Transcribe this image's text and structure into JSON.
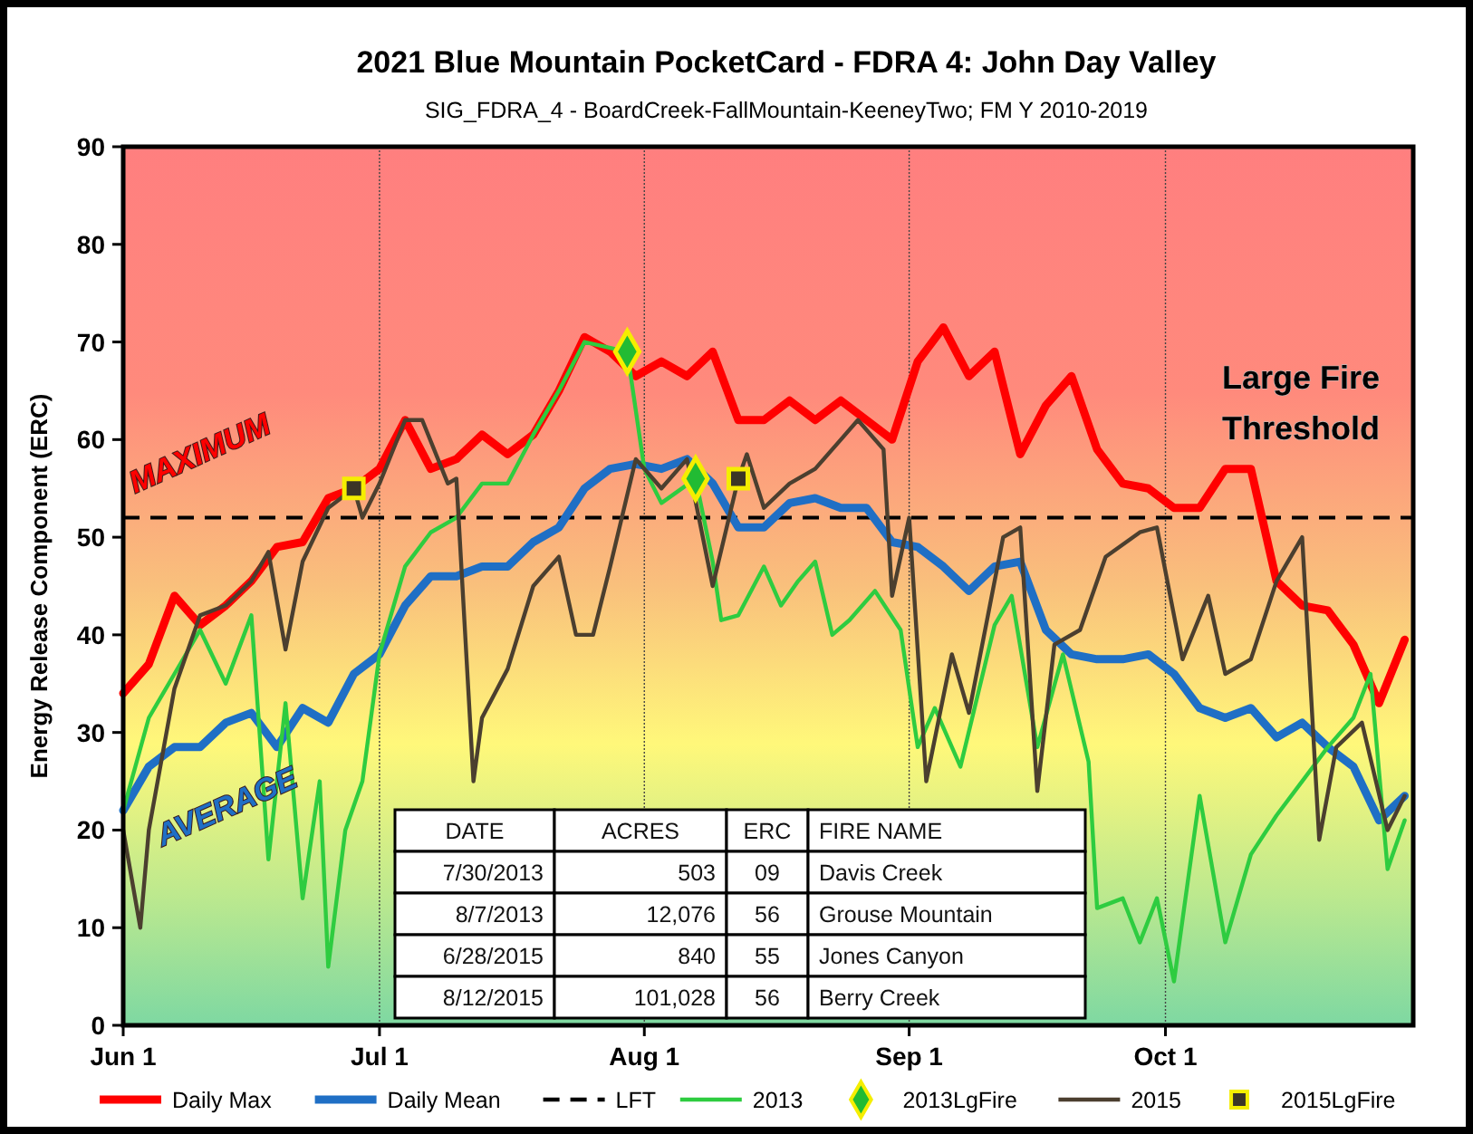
{
  "chart_data": {
    "type": "line",
    "title": "2021 Blue Mountain PocketCard - FDRA 4: John Day Valley",
    "subtitle": "SIG_FDRA_4 - BoardCreek-FallMountain-KeeneyTwo; FM Y 2010-2019",
    "ylabel": "Energy Release Component (ERC)",
    "xlim": [
      "--06-01",
      "--10-30"
    ],
    "xticks": [
      {
        "value": "--06-01",
        "label": "Jun 1"
      },
      {
        "value": "--07-01",
        "label": "Jul 1"
      },
      {
        "value": "--08-01",
        "label": "Aug 1"
      },
      {
        "value": "--09-01",
        "label": "Sep 1"
      },
      {
        "value": "--10-01",
        "label": "Oct 1"
      }
    ],
    "ylim": [
      0,
      90
    ],
    "yticks": [
      0,
      10,
      20,
      30,
      40,
      50,
      60,
      70,
      80,
      90
    ],
    "grid": "x",
    "legend": "bottom",
    "x": [
      "--06-01",
      "--06-04",
      "--06-07",
      "--06-10",
      "--06-13",
      "--06-16",
      "--06-19",
      "--06-22",
      "--06-25",
      "--06-28",
      "--07-01",
      "--07-04",
      "--07-07",
      "--07-10",
      "--07-13",
      "--07-16",
      "--07-19",
      "--07-22",
      "--07-25",
      "--07-28",
      "--07-31",
      "--08-03",
      "--08-06",
      "--08-09",
      "--08-12",
      "--08-15",
      "--08-18",
      "--08-21",
      "--08-24",
      "--08-27",
      "--08-30",
      "--09-02",
      "--09-05",
      "--09-08",
      "--09-11",
      "--09-14",
      "--09-17",
      "--09-20",
      "--09-23",
      "--09-26",
      "--09-29",
      "--10-02",
      "--10-05",
      "--10-08",
      "--10-11",
      "--10-14",
      "--10-17",
      "--10-20",
      "--10-23",
      "--10-26",
      "--10-29"
    ],
    "series": [
      {
        "name": "Daily Max",
        "color": "#ff0000",
        "values": [
          34,
          37,
          44,
          41,
          43,
          45.5,
          49,
          49.5,
          54,
          55,
          57,
          62,
          57,
          58,
          60.5,
          58.5,
          60.5,
          65,
          70.5,
          69,
          66.5,
          68,
          66.5,
          69,
          62,
          62,
          64,
          62,
          64,
          62,
          60,
          68,
          71.5,
          66.5,
          69,
          58.5,
          63.5,
          66.5,
          59,
          55.5,
          55,
          53,
          53,
          57,
          57,
          45.5,
          43,
          42.5,
          39,
          33,
          39.5
        ]
      },
      {
        "name": "Daily Mean",
        "color": "#1f6fc5",
        "values": [
          22,
          26.5,
          28.5,
          28.5,
          31,
          32,
          28.5,
          32.5,
          31,
          36,
          38,
          43,
          46,
          46,
          47,
          47,
          49.5,
          51,
          55,
          57,
          57.5,
          57,
          58,
          55.5,
          51,
          51,
          53.5,
          54,
          53,
          53,
          49.5,
          49,
          47,
          44.5,
          47,
          47.5,
          40.5,
          38,
          37.5,
          37.5,
          38,
          36,
          32.5,
          31.5,
          32.5,
          29.5,
          31,
          28.5,
          26.5,
          21,
          23.5
        ]
      },
      {
        "name": "2013",
        "color": "#2ecc40",
        "x": [
          "--06-01",
          "--06-04",
          "--06-07",
          "--06-10",
          "--06-13",
          "--06-16",
          "--06-18",
          "--06-20",
          "--06-22",
          "--06-24",
          "--06-25",
          "--06-27",
          "--06-29",
          "--07-01",
          "--07-04",
          "--07-07",
          "--07-10",
          "--07-13",
          "--07-16",
          "--07-19",
          "--07-22",
          "--07-25",
          "--07-30",
          "--08-01",
          "--08-03",
          "--08-07",
          "--08-09",
          "--08-10",
          "--08-12",
          "--08-15",
          "--08-17",
          "--08-19",
          "--08-21",
          "--08-23",
          "--08-25",
          "--08-28",
          "--08-31",
          "--09-02",
          "--09-04",
          "--09-07",
          "--09-11",
          "--09-13",
          "--09-16",
          "--09-19",
          "--09-22",
          "--09-23",
          "--09-26",
          "--09-28",
          "--09-30",
          "--10-02",
          "--10-05",
          "--10-08",
          "--10-11",
          "--10-14",
          "--10-17",
          "--10-20",
          "--10-23",
          "--10-25",
          "--10-27",
          "--10-29"
        ],
        "values": [
          22,
          31.5,
          36,
          40.5,
          35,
          42,
          17,
          33,
          13,
          25,
          6,
          20,
          25,
          38,
          47,
          50.5,
          52,
          55.5,
          55.5,
          60.5,
          65,
          70,
          69,
          57,
          53.5,
          56,
          47.5,
          41.5,
          42,
          47,
          43,
          45.5,
          47.5,
          40,
          41.5,
          44.5,
          40.5,
          28.5,
          32.5,
          26.5,
          41,
          44,
          28.5,
          38,
          27,
          12,
          13,
          8.5,
          13,
          4.5,
          23.5,
          8.5,
          17.5,
          21.5,
          25,
          28.5,
          31.5,
          36,
          16,
          21
        ]
      },
      {
        "name": "2013LgFire",
        "type": "scatter",
        "marker": "diamond",
        "color": "#22bb33",
        "x": [
          "--07-30",
          "--08-07"
        ],
        "values": [
          69,
          56
        ]
      },
      {
        "name": "2015",
        "color": "#4b3f2f",
        "x": [
          "--06-01",
          "--06-03",
          "--06-04",
          "--06-07",
          "--06-10",
          "--06-13",
          "--06-16",
          "--06-18",
          "--06-20",
          "--06-22",
          "--06-25",
          "--06-28",
          "--06-29",
          "--07-01",
          "--07-04",
          "--07-06",
          "--07-09",
          "--07-10",
          "--07-12",
          "--07-13",
          "--07-16",
          "--07-19",
          "--07-22",
          "--07-24",
          "--07-26",
          "--07-28",
          "--07-31",
          "--08-03",
          "--08-06",
          "--08-09",
          "--08-12",
          "--08-13",
          "--08-15",
          "--08-18",
          "--08-21",
          "--08-24",
          "--08-26",
          "--08-29",
          "--08-30",
          "--09-01",
          "--09-03",
          "--09-06",
          "--09-08",
          "--09-12",
          "--09-14",
          "--09-16",
          "--09-18",
          "--09-21",
          "--09-24",
          "--09-28",
          "--09-30",
          "--10-03",
          "--10-06",
          "--10-08",
          "--10-11",
          "--10-14",
          "--10-17",
          "--10-19",
          "--10-21",
          "--10-24",
          "--10-27",
          "--10-29"
        ],
        "values": [
          20,
          10,
          20,
          34.5,
          42,
          43,
          45.5,
          48.5,
          38.5,
          47.5,
          53,
          55,
          52,
          55.5,
          62,
          62,
          55.5,
          56,
          25,
          31.5,
          36.5,
          45,
          48,
          40,
          40,
          47,
          58,
          55,
          58,
          45,
          56,
          58.5,
          53,
          55.5,
          57,
          60,
          62,
          59,
          44,
          52,
          25,
          38,
          32,
          50,
          51,
          24,
          39,
          40.5,
          48,
          50.5,
          51,
          37.5,
          44,
          36,
          37.5,
          45.5,
          50,
          19,
          28.5,
          31,
          20,
          23.5
        ]
      },
      {
        "name": "2015LgFire",
        "type": "scatter",
        "marker": "square",
        "color": "#3b3526",
        "x": [
          "--06-28",
          "--08-12"
        ],
        "values": [
          55,
          56
        ]
      }
    ],
    "ref_lines": [
      {
        "axis": "y",
        "value": 52,
        "label": "LFT",
        "color": "#000000",
        "line_style": "dashed"
      }
    ],
    "annotations": [
      "MAXIMUM",
      "AVERAGE",
      "Large Fire Threshold",
      "DATE\tACRES\tERC\tFIRE NAME",
      "7/30/2013\t503\t09\tDavis Creek",
      "8/7/2013\t12,076\t56\tGrouse Mountain",
      "6/28/2015\t840\t55\tJones Canyon",
      "8/12/2015\t101,028\t56\tBerry Creek"
    ]
  }
}
